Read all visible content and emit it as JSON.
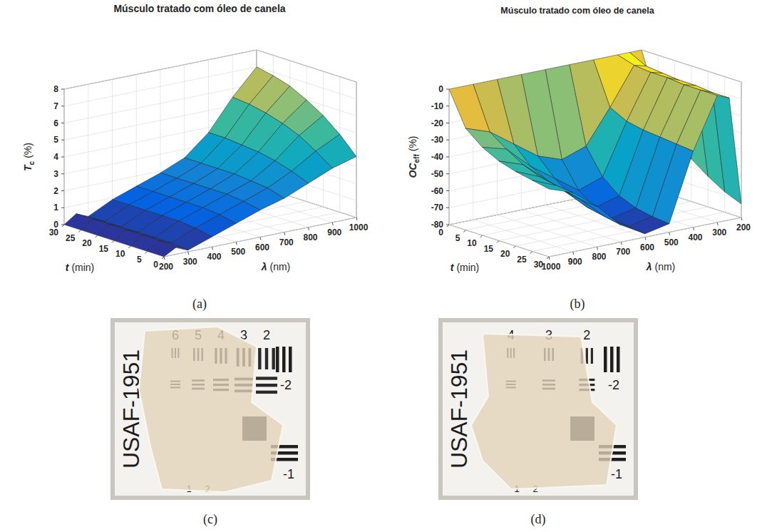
{
  "chart_data": [
    {
      "type": "surface",
      "title": "Músculo tratado com óleo de canela",
      "label": "(a)",
      "xlabel": {
        "symbol": "t",
        "unit": "(min)"
      },
      "ylabel": {
        "symbol": "λ",
        "unit": "(nm)"
      },
      "zlabel": {
        "symbol": "T",
        "subscript": "c",
        "unit": "(%)"
      },
      "x": [
        0,
        5,
        10,
        15,
        20,
        25,
        30
      ],
      "y": [
        200,
        250,
        300,
        400,
        500,
        600,
        700,
        800,
        900,
        1000
      ],
      "values": [
        [
          0.0,
          0.4,
          0.1,
          0.6,
          1.1,
          1.6,
          2.0,
          2.6,
          3.2,
          3.6
        ],
        [
          0.0,
          0.5,
          0.2,
          0.8,
          1.3,
          1.8,
          2.3,
          3.0,
          3.9,
          4.6
        ],
        [
          0.0,
          0.5,
          0.2,
          0.9,
          1.4,
          1.9,
          2.4,
          3.3,
          4.5,
          5.4
        ],
        [
          0.0,
          0.5,
          0.2,
          0.9,
          1.4,
          1.9,
          2.5,
          3.5,
          4.9,
          6.0
        ],
        [
          0.0,
          0.5,
          0.2,
          0.9,
          1.4,
          1.9,
          2.5,
          3.6,
          5.2,
          6.5
        ],
        [
          0.0,
          0.5,
          0.2,
          0.9,
          1.4,
          1.9,
          2.5,
          3.7,
          5.4,
          6.8
        ],
        [
          0.0,
          0.5,
          0.2,
          0.9,
          1.4,
          1.9,
          2.5,
          3.7,
          5.5,
          7.0
        ]
      ],
      "xlim": [
        0,
        30
      ],
      "ylim": [
        200,
        1000
      ],
      "zlim": [
        0,
        8
      ],
      "xticks": [
        0,
        5,
        10,
        15,
        20,
        25,
        30
      ],
      "yticks": [
        200,
        300,
        400,
        500,
        600,
        700,
        800,
        900,
        1000
      ],
      "zticks": [
        0,
        1,
        2,
        3,
        4,
        5,
        6,
        7,
        8
      ],
      "grid": true
    },
    {
      "type": "surface",
      "title": "Músculo tratado com óleo de canela",
      "label": "(b)",
      "xlabel": {
        "symbol": "t",
        "unit": "(min)"
      },
      "ylabel": {
        "symbol": "λ",
        "unit": "(nm)"
      },
      "zlabel": {
        "symbol": "OC",
        "subscript": "eff",
        "unit": "(%)"
      },
      "x": [
        0,
        5,
        10,
        15,
        20,
        25,
        30
      ],
      "y": [
        200,
        250,
        300,
        400,
        500,
        600,
        700,
        800,
        900,
        1000
      ],
      "values": [
        [
          0,
          0,
          0,
          0,
          0,
          0,
          0,
          0,
          0,
          0
        ],
        [
          -30,
          -5,
          -3,
          -25,
          -45,
          -50,
          -45,
          -35,
          -25,
          -20
        ],
        [
          -45,
          -6,
          -4,
          -30,
          -60,
          -65,
          -55,
          -45,
          -32,
          -28
        ],
        [
          -55,
          -7,
          -4,
          -32,
          -68,
          -72,
          -62,
          -50,
          -38,
          -33
        ],
        [
          -62,
          -7,
          -5,
          -33,
          -72,
          -75,
          -66,
          -53,
          -42,
          -36
        ],
        [
          -68,
          -8,
          -5,
          -34,
          -74,
          -77,
          -68,
          -55,
          -44,
          -38
        ],
        [
          -72,
          -8,
          -5,
          -35,
          -75,
          -78,
          -70,
          -56,
          -45,
          -40
        ]
      ],
      "xlim": [
        0,
        30
      ],
      "ylim": [
        200,
        1000
      ],
      "zlim": [
        -80,
        0
      ],
      "xticks": [
        0,
        5,
        10,
        15,
        20,
        25,
        30
      ],
      "yticks": [
        200,
        300,
        400,
        500,
        600,
        700,
        800,
        900,
        1000
      ],
      "zticks": [
        -80,
        -70,
        -60,
        -50,
        -40,
        -30,
        -20,
        -10,
        0
      ],
      "grid": true
    }
  ],
  "photos": [
    {
      "label": "(c)",
      "target": "USAF-1951",
      "top_numbers": [
        "6",
        "5",
        "4",
        "3",
        "2"
      ],
      "group_numbers": [
        "-2",
        "-1"
      ],
      "bottom_numbers": [
        "1",
        "2"
      ]
    },
    {
      "label": "(d)",
      "target": "USAF-1951",
      "top_numbers": [
        "4",
        "3",
        "2"
      ],
      "group_numbers": [
        "-2",
        "-1"
      ],
      "bottom_numbers": [
        "1",
        "2"
      ]
    }
  ]
}
